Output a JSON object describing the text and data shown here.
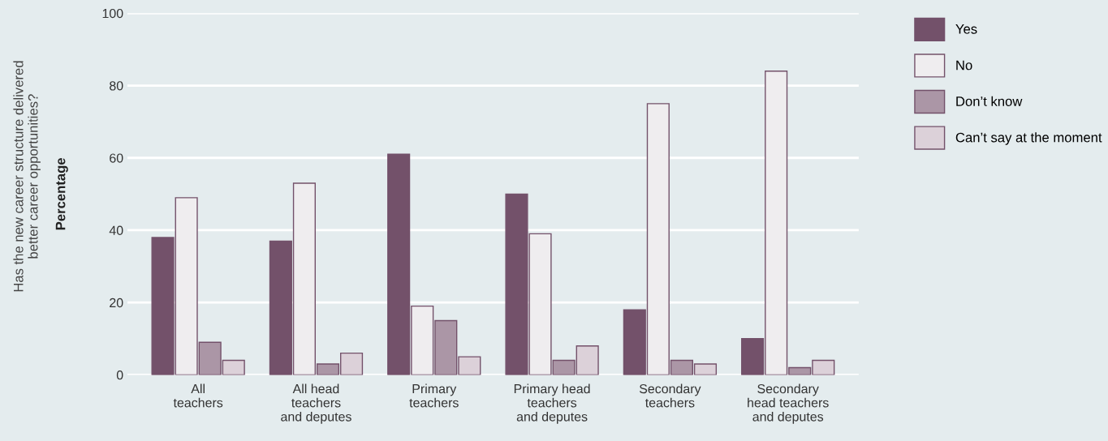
{
  "chart_data": {
    "type": "bar",
    "categories": [
      "All\nteachers",
      "All head\nteachers\nand deputes",
      "Primary\nteachers",
      "Primary head\nteachers\nand deputes",
      "Secondary\nteachers",
      "Secondary\nhead teachers\nand deputes"
    ],
    "series": [
      {
        "name": "Yes",
        "color": "#73516a",
        "values": [
          38,
          37,
          61,
          50,
          18,
          10
        ]
      },
      {
        "name": "No",
        "color": "#efedef",
        "values": [
          49,
          53,
          19,
          39,
          75,
          84
        ]
      },
      {
        "name": "Don’t know",
        "color": "#ab96a6",
        "values": [
          9,
          3,
          15,
          4,
          4,
          2
        ]
      },
      {
        "name": "Can’t say at the moment",
        "color": "#dcd1d9",
        "values": [
          4,
          6,
          5,
          8,
          3,
          4
        ]
      }
    ],
    "ylabel": "Percentage",
    "annotations": [
      "Has the new career structure delivered\nbetter career opportunities?"
    ],
    "ylim": [
      0,
      100
    ],
    "yticks": [
      0,
      20,
      40,
      60,
      80,
      100
    ],
    "grid": "y",
    "legend": "top right"
  }
}
